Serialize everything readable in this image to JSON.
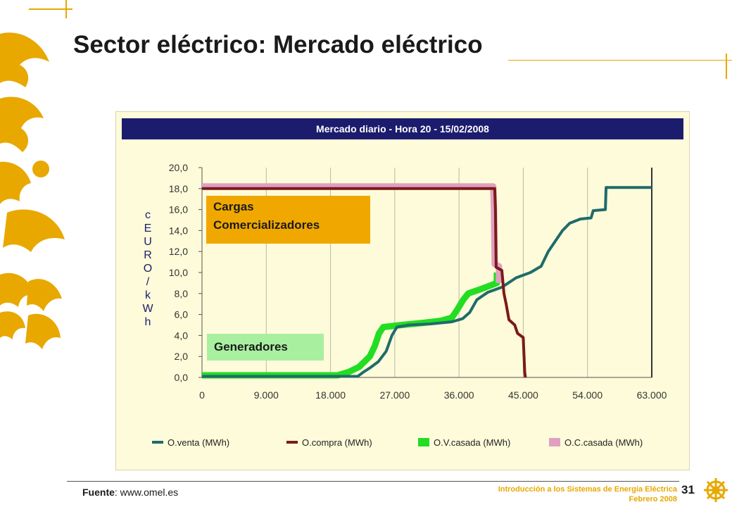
{
  "slide": {
    "title": "Sector eléctrico: Mercado eléctrico",
    "source_label": "Fuente",
    "source_text": ": www.omel.es",
    "course": "Introducción a los Sistemas de Energía Eléctrica",
    "date": "Febrero 2008",
    "page": "31",
    "annotation_buyers": [
      "Cargas",
      "Comercializadores"
    ],
    "annotation_sellers": "Generadores",
    "colors": {
      "accent": "#e8a800",
      "navy": "#1c1c6e",
      "panel": "#fdfbd9"
    }
  },
  "chart_data": {
    "type": "line",
    "title": "Mercado diario - Hora 20 - 15/02/2008",
    "xlabel": "",
    "ylabel": "cEURO/kWh",
    "xlim": [
      0,
      63000
    ],
    "ylim": [
      0,
      20
    ],
    "xticks": [
      "0",
      "9.000",
      "18.000",
      "27.000",
      "36.000",
      "45.000",
      "54.000",
      "63.000"
    ],
    "yticks": [
      "0,0",
      "2,0",
      "4,0",
      "6,0",
      "8,0",
      "10,0",
      "12,0",
      "14,0",
      "16,0",
      "18,0",
      "20,0"
    ],
    "grid": "vertical",
    "legend_position": "bottom",
    "series": [
      {
        "name": "O.venta (MWh)",
        "color": "#1f6b6b",
        "points": [
          [
            0,
            0.1
          ],
          [
            21800,
            0.1
          ],
          [
            22600,
            0.5
          ],
          [
            23500,
            0.9
          ],
          [
            24700,
            1.5
          ],
          [
            25800,
            2.5
          ],
          [
            26600,
            4.0
          ],
          [
            27300,
            4.8
          ],
          [
            29000,
            5.0
          ],
          [
            32000,
            5.1
          ],
          [
            35000,
            5.3
          ],
          [
            36500,
            5.6
          ],
          [
            37500,
            6.2
          ],
          [
            38500,
            7.4
          ],
          [
            40000,
            8.1
          ],
          [
            42000,
            8.6
          ],
          [
            44000,
            9.5
          ],
          [
            46000,
            10.0
          ],
          [
            47500,
            10.6
          ],
          [
            48500,
            12.0
          ],
          [
            49500,
            13.0
          ],
          [
            50500,
            14.0
          ],
          [
            51500,
            14.7
          ],
          [
            53000,
            15.1
          ],
          [
            54500,
            15.2
          ],
          [
            54800,
            15.9
          ],
          [
            56500,
            16.0
          ],
          [
            56600,
            18.1
          ],
          [
            63000,
            18.1
          ]
        ]
      },
      {
        "name": "O.compra (MWh)",
        "color": "#7a1a1a",
        "points": [
          [
            0,
            18.0
          ],
          [
            41000,
            18.0
          ],
          [
            41100,
            16.0
          ],
          [
            41200,
            10.5
          ],
          [
            42000,
            10.2
          ],
          [
            42300,
            8.0
          ],
          [
            42600,
            7.0
          ],
          [
            43000,
            5.5
          ],
          [
            43800,
            5.0
          ],
          [
            44200,
            4.2
          ],
          [
            45000,
            3.8
          ],
          [
            45200,
            0.5
          ],
          [
            45300,
            0
          ]
        ]
      },
      {
        "name": "O.V.casada (MWh)",
        "color": "#22dd22",
        "points": [
          [
            0,
            0.2
          ],
          [
            19000,
            0.2
          ],
          [
            20500,
            0.5
          ],
          [
            22000,
            1.0
          ],
          [
            23500,
            2.0
          ],
          [
            24200,
            3.0
          ],
          [
            24800,
            4.2
          ],
          [
            25400,
            4.8
          ],
          [
            28000,
            5.0
          ],
          [
            31000,
            5.2
          ],
          [
            33500,
            5.4
          ],
          [
            35000,
            5.7
          ],
          [
            35800,
            6.5
          ],
          [
            36600,
            7.4
          ],
          [
            37300,
            8.0
          ],
          [
            39000,
            8.4
          ],
          [
            41300,
            9.0
          ],
          [
            41300,
            10.0
          ]
        ]
      },
      {
        "name": "O.C.casada (MWh)",
        "color": "#e0a0c0",
        "points": [
          [
            0,
            18.2
          ],
          [
            40800,
            18.2
          ],
          [
            40900,
            16.0
          ],
          [
            41000,
            10.8
          ],
          [
            41600,
            10.6
          ],
          [
            41600,
            9.0
          ]
        ]
      }
    ]
  }
}
